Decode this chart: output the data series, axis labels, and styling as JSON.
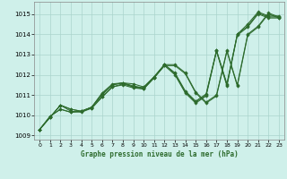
{
  "title": "Graphe pression niveau de la mer (hPa)",
  "bg_color": "#cff0ea",
  "line_color": "#2d6b2d",
  "grid_color": "#aad4cc",
  "xlim": [
    -0.5,
    23.5
  ],
  "ylim": [
    1008.8,
    1015.6
  ],
  "yticks": [
    1009,
    1010,
    1011,
    1012,
    1013,
    1014,
    1015
  ],
  "xticks": [
    0,
    1,
    2,
    3,
    4,
    5,
    6,
    7,
    8,
    9,
    10,
    11,
    12,
    13,
    14,
    15,
    16,
    17,
    18,
    19,
    20,
    21,
    22,
    23
  ],
  "series": [
    [
      1009.3,
      1009.9,
      1010.5,
      1010.3,
      1010.2,
      1010.4,
      1011.1,
      1011.55,
      1011.6,
      1011.55,
      1011.4,
      1011.9,
      1012.5,
      1012.1,
      1011.2,
      1010.7,
      1011.05,
      1013.2,
      1011.55,
      1014.0,
      1014.5,
      1015.1,
      1014.9,
      1014.9
    ],
    [
      1009.3,
      1009.9,
      1010.5,
      1010.3,
      1010.2,
      1010.4,
      1011.0,
      1011.5,
      1011.6,
      1011.4,
      1011.35,
      1011.85,
      1012.5,
      1012.05,
      1011.15,
      1010.65,
      1011.0,
      1013.2,
      1011.5,
      1014.0,
      1014.4,
      1015.05,
      1014.85,
      1014.85
    ],
    [
      1009.3,
      1009.9,
      1010.5,
      1010.2,
      1010.15,
      1010.35,
      1010.9,
      1011.4,
      1011.5,
      1011.35,
      1011.3,
      1011.85,
      1012.45,
      1012.0,
      1011.1,
      1010.6,
      1010.95,
      1013.15,
      1011.45,
      1013.95,
      1014.35,
      1015.0,
      1014.8,
      1014.8
    ],
    [
      1009.3,
      1009.95,
      1010.3,
      1010.15,
      1010.2,
      1010.4,
      1011.05,
      1011.5,
      1011.6,
      1011.45,
      1011.35,
      1011.9,
      1012.5,
      1012.5,
      1012.1,
      1011.15,
      1010.65,
      1011.0,
      1013.2,
      1011.5,
      1014.0,
      1014.4,
      1015.05,
      1014.85
    ],
    [
      1009.3,
      1009.95,
      1010.3,
      1010.15,
      1010.2,
      1010.35,
      1010.9,
      1011.4,
      1011.55,
      1011.4,
      1011.3,
      1011.85,
      1012.45,
      1012.45,
      1012.05,
      1011.1,
      1010.6,
      1010.95,
      1013.15,
      1011.45,
      1013.95,
      1014.35,
      1015.0,
      1014.8
    ]
  ]
}
